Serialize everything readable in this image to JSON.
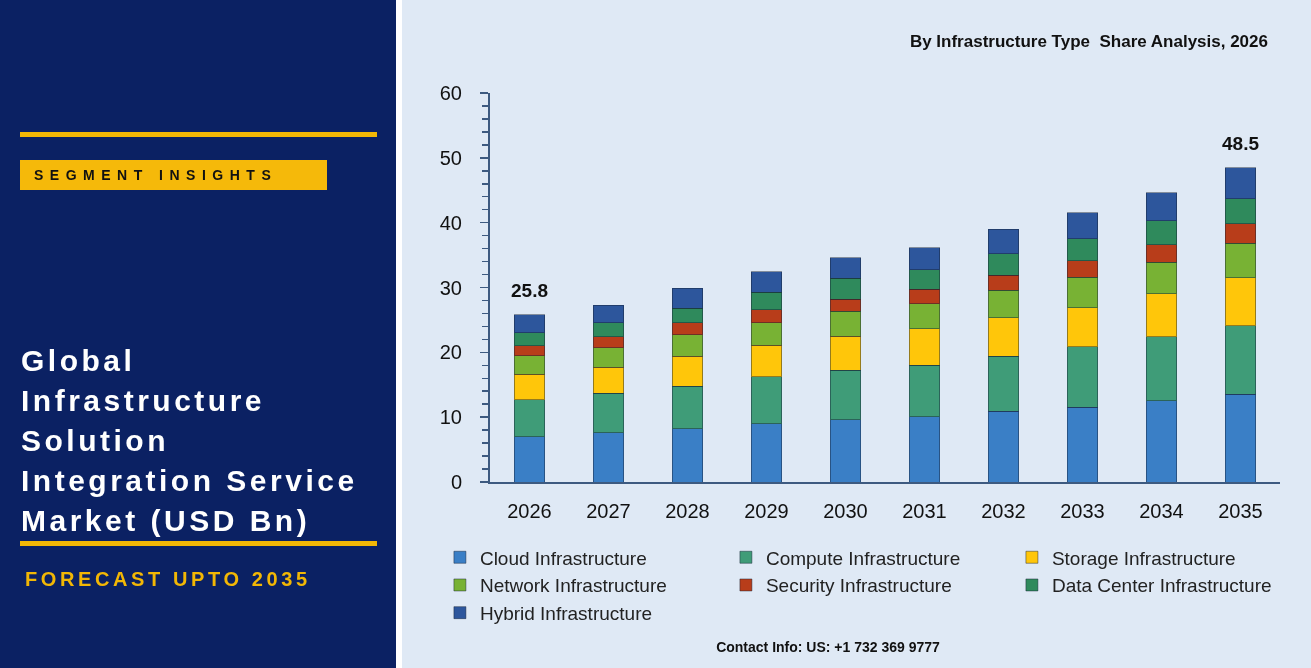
{
  "chart_data": {
    "type": "bar",
    "stacked": true,
    "title": "Global Infrastructure Solution Integration Service Market (USD Bn)",
    "subtitle": "By Infrastructure Type  Share Analysis, 2026",
    "annotations": [
      "SEGMENT INSIGHTS",
      "FORECAST UPTO 2035",
      "Contact Info: US: +1 732 369 9777"
    ],
    "categories": [
      "2026",
      "2027",
      "2028",
      "2029",
      "2030",
      "2031",
      "2032",
      "2033",
      "2034",
      "2035"
    ],
    "series": [
      {
        "name": "Cloud Infrastructure",
        "color": "#3a7fc6",
        "values": [
          7.0,
          7.6,
          8.2,
          9.0,
          9.6,
          10.1,
          10.9,
          11.5,
          12.5,
          13.5
        ]
      },
      {
        "name": "Compute Infrastructure",
        "color": "#3f9c78",
        "values": [
          5.7,
          6.1,
          6.6,
          7.2,
          7.6,
          7.9,
          8.5,
          9.4,
          9.9,
          10.6
        ]
      },
      {
        "name": "Storage Infrastructure",
        "color": "#ffc60a",
        "values": [
          3.9,
          4.0,
          4.6,
          4.9,
          5.3,
          5.6,
          5.9,
          6.0,
          6.6,
          7.4
        ]
      },
      {
        "name": "Network Infrastructure",
        "color": "#78b234",
        "values": [
          2.9,
          3.0,
          3.3,
          3.5,
          3.8,
          3.9,
          4.3,
          4.7,
          4.9,
          5.3
        ]
      },
      {
        "name": "Security Infrastructure",
        "color": "#b83d1a",
        "values": [
          1.5,
          1.7,
          1.9,
          2.0,
          1.9,
          2.2,
          2.3,
          2.5,
          2.7,
          3.0
        ]
      },
      {
        "name": "Data Center Infrastructure",
        "color": "#2f8a5c",
        "values": [
          2.0,
          2.2,
          2.2,
          2.7,
          3.2,
          3.0,
          3.3,
          3.4,
          3.7,
          3.9
        ]
      },
      {
        "name": "Hybrid Infrastructure",
        "color": "#2d569c",
        "values": [
          2.8,
          2.7,
          3.1,
          3.1,
          3.2,
          3.4,
          3.8,
          4.0,
          4.3,
          4.8
        ]
      }
    ],
    "ylim": [
      0,
      60
    ],
    "yticks": [
      0,
      {
        "value": 2,
        "label": null
      },
      {
        "value": 4,
        "label": null
      },
      {
        "value": 6,
        "label": null
      },
      {
        "value": 8,
        "label": null
      },
      10,
      {
        "value": 12,
        "label": null
      },
      {
        "value": 14,
        "label": null
      },
      {
        "value": 16,
        "label": null
      },
      {
        "value": 18,
        "label": null
      },
      20,
      {
        "value": 22,
        "label": null
      },
      {
        "value": 24,
        "label": null
      },
      {
        "value": 26,
        "label": null
      },
      {
        "value": 28,
        "label": null
      },
      30,
      {
        "value": 32,
        "label": null
      },
      {
        "value": 34,
        "label": null
      },
      {
        "value": 36,
        "label": null
      },
      {
        "value": 38,
        "label": null
      },
      40,
      {
        "value": 42,
        "label": null
      },
      {
        "value": 44,
        "label": null
      },
      {
        "value": 46,
        "label": null
      },
      {
        "value": 48,
        "label": null
      },
      50,
      {
        "value": 52,
        "label": null
      },
      {
        "value": 54,
        "label": null
      },
      {
        "value": 56,
        "label": null
      },
      {
        "value": 58,
        "label": null
      },
      60
    ],
    "legend": "bottom",
    "totals": [
      "25.8",
      null,
      null,
      null,
      null,
      null,
      null,
      null,
      null,
      "48.5"
    ]
  }
}
